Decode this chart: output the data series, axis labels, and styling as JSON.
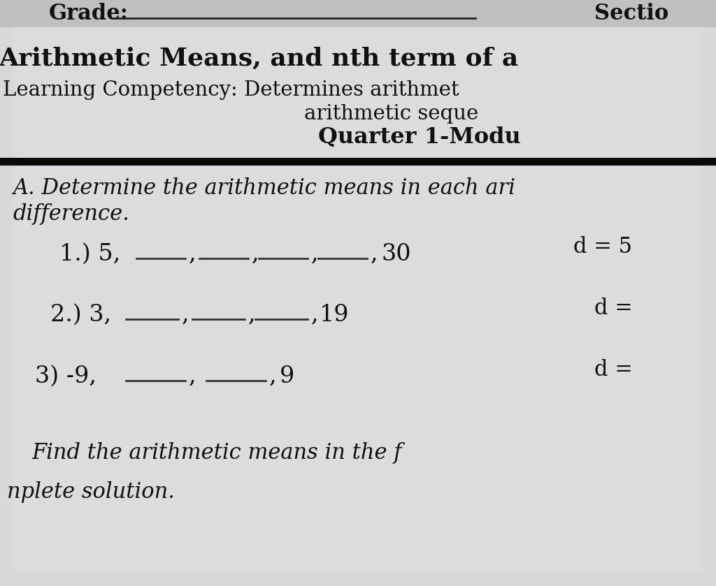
{
  "bg_color": "#c8c8c8",
  "paper_color": "#dcdcdc",
  "header_color": "#b8b8b8",
  "text_color": "#111111",
  "grade_label": "Grade:",
  "section_label": "Sectio",
  "title": "Arithmetic Means, and nth term of a",
  "lc_line1": "Learning Competency: Determines arithmet",
  "lc_line2": "arithmetic seque",
  "lc_line3": "Quarter 1-Modu",
  "section_a_line1": "A. Determine the arithmetic means in each ari",
  "section_a_line2": "difference.",
  "p1_prefix": "1.) 5,",
  "p1_suffix": "30",
  "p1_d": "d = 5",
  "p1_blanks": 4,
  "p2_prefix": "2.) 3,",
  "p2_suffix": "19",
  "p2_d": "d =",
  "p2_blanks": 3,
  "p3_prefix": "3) -9,",
  "p3_suffix": "9",
  "p3_d": "d =",
  "p3_blanks": 2,
  "footer1": "Find the arithmetic means in the f",
  "footer2": "nplete solution."
}
